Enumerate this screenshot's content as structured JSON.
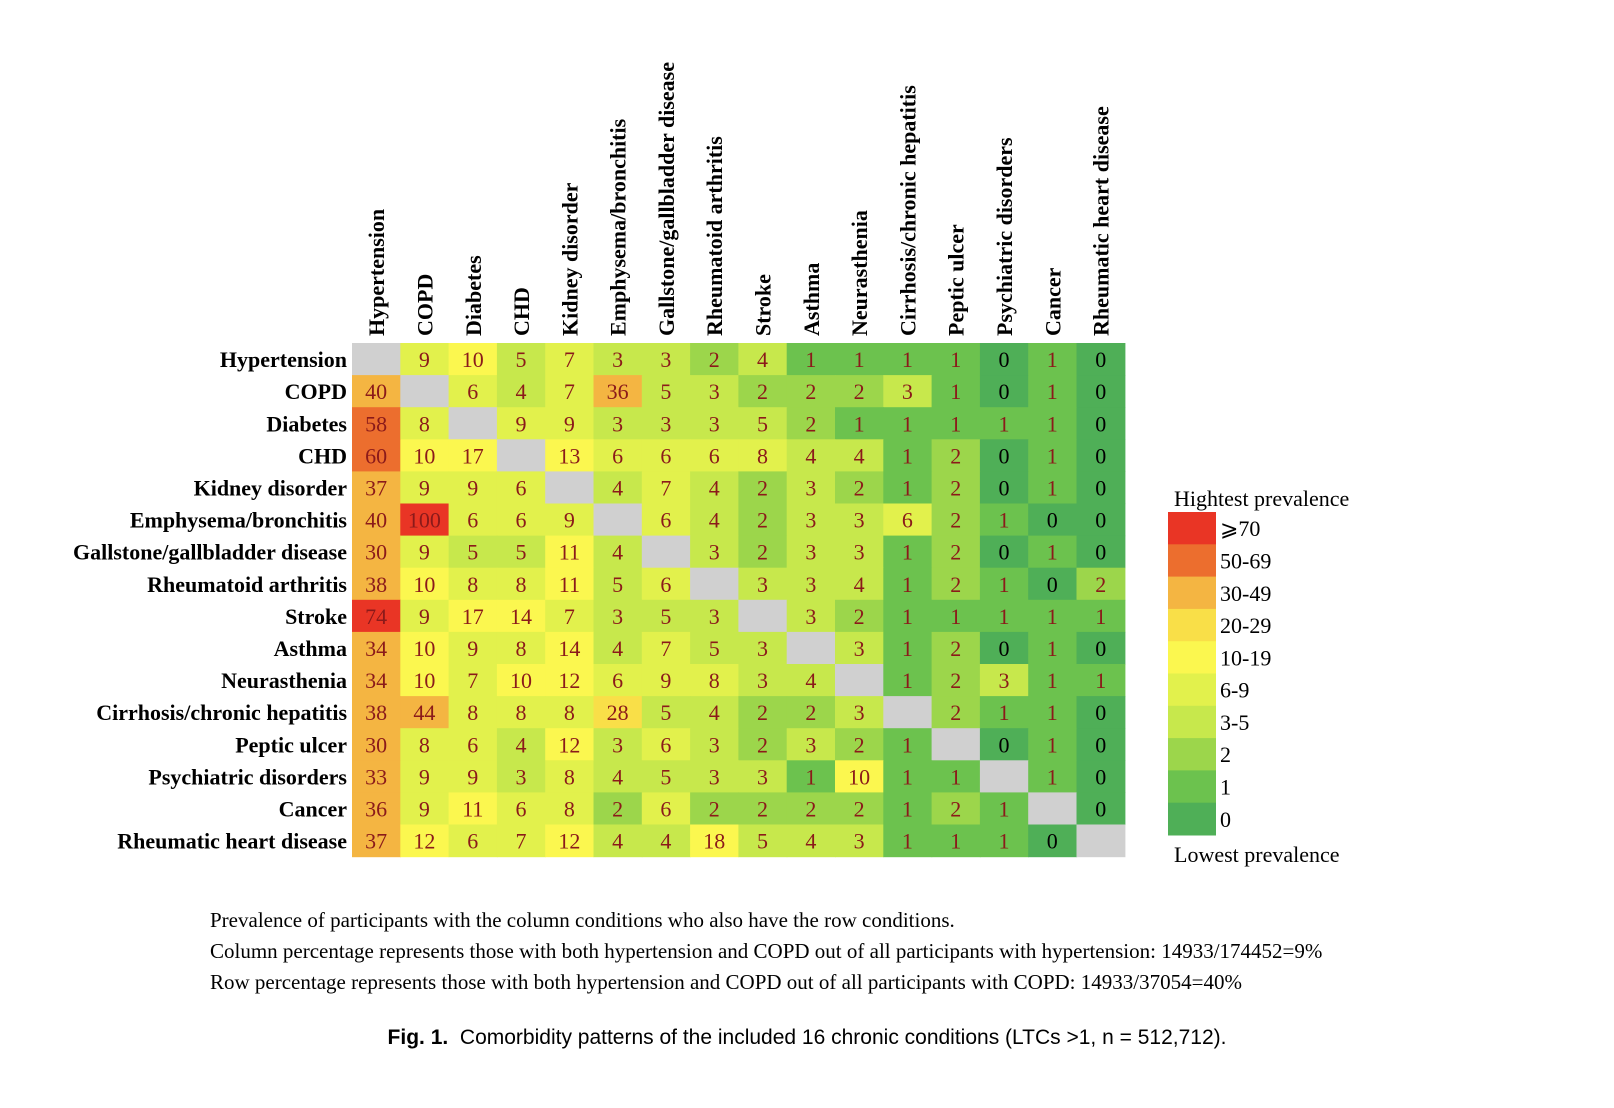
{
  "chart_data": {
    "type": "heatmap",
    "title": "",
    "xlabel": "",
    "ylabel": "",
    "conditions": [
      "Hypertension",
      "COPD",
      "Diabetes",
      "CHD",
      "Kidney disorder",
      "Emphysema/bronchitis",
      "Gallstone/gallbladder disease",
      "Rheumatoid arthritis",
      "Stroke",
      "Asthma",
      "Neurasthenia",
      "Cirrhosis/chronic hepatitis",
      "Peptic ulcer",
      "Psychiatric disorders",
      "Cancer",
      "Rheumatic heart disease"
    ],
    "row_labels": [
      "Hypertension",
      "COPD",
      "Diabetes",
      "CHD",
      "Kidney disorder",
      "Emphysema/bronchitis",
      "Gallstone/gallbladder disease",
      "Rheumatoid arthritis",
      "Stroke",
      "Asthma",
      "Neurasthenia",
      "Cirrhosis/chronic hepatitis",
      "Peptic ulcer",
      "Psychiatric disorders",
      "Cancer",
      "Rheumatic heart disease"
    ],
    "col_labels": [
      "Hypertension",
      "COPD",
      "Diabetes",
      "CHD",
      "Kidney disorder",
      "Emphysema/bronchitis",
      "Gallstone/gallbladder disease",
      "Rheumatoid arthritis",
      "Stroke",
      "Asthma",
      "Neurasthenia",
      "Cirrhosis/chronic hepatitis",
      "Peptic ulcer",
      "Psychiatric disorders",
      "Cancer",
      "Rheumatic heart disease"
    ],
    "values": [
      [
        null,
        9,
        10,
        5,
        7,
        3,
        3,
        2,
        4,
        1,
        1,
        1,
        1,
        0,
        1,
        0
      ],
      [
        40,
        null,
        6,
        4,
        7,
        36,
        5,
        3,
        2,
        2,
        2,
        3,
        1,
        0,
        1,
        0
      ],
      [
        58,
        8,
        null,
        9,
        9,
        3,
        3,
        3,
        5,
        2,
        1,
        1,
        1,
        1,
        1,
        0
      ],
      [
        60,
        10,
        17,
        null,
        13,
        6,
        6,
        6,
        8,
        4,
        4,
        1,
        2,
        0,
        1,
        0
      ],
      [
        37,
        9,
        9,
        6,
        null,
        4,
        7,
        4,
        2,
        3,
        2,
        1,
        2,
        0,
        1,
        0
      ],
      [
        40,
        100,
        6,
        6,
        9,
        null,
        6,
        4,
        2,
        3,
        3,
        6,
        2,
        1,
        0,
        0
      ],
      [
        30,
        9,
        5,
        5,
        11,
        4,
        null,
        3,
        2,
        3,
        3,
        1,
        2,
        0,
        1,
        0
      ],
      [
        38,
        10,
        8,
        8,
        11,
        5,
        6,
        null,
        3,
        3,
        4,
        1,
        2,
        1,
        0,
        2
      ],
      [
        74,
        9,
        17,
        14,
        7,
        3,
        5,
        3,
        null,
        3,
        2,
        1,
        1,
        1,
        1,
        1
      ],
      [
        34,
        10,
        9,
        8,
        14,
        4,
        7,
        5,
        3,
        null,
        3,
        1,
        2,
        0,
        1,
        0
      ],
      [
        34,
        10,
        7,
        10,
        12,
        6,
        9,
        8,
        3,
        4,
        null,
        1,
        2,
        3,
        1,
        1
      ],
      [
        38,
        44,
        8,
        8,
        8,
        28,
        5,
        4,
        2,
        2,
        3,
        null,
        2,
        1,
        1,
        0
      ],
      [
        30,
        8,
        6,
        4,
        12,
        3,
        6,
        3,
        2,
        3,
        2,
        1,
        null,
        0,
        1,
        0
      ],
      [
        33,
        9,
        9,
        3,
        8,
        4,
        5,
        3,
        3,
        1,
        10,
        1,
        1,
        null,
        1,
        0
      ],
      [
        36,
        9,
        11,
        6,
        8,
        2,
        6,
        2,
        2,
        2,
        2,
        1,
        2,
        1,
        null,
        0
      ],
      [
        37,
        12,
        6,
        7,
        12,
        4,
        4,
        18,
        5,
        4,
        3,
        1,
        1,
        1,
        0,
        null
      ]
    ],
    "units": "percent",
    "diagonal_color": "#d0d0d0",
    "text_color_nonzero": "#8b1a1a",
    "text_color_zero": "#000000",
    "legend": {
      "placement": "right",
      "top_label": "Hightest prevalence",
      "bottom_label": "Lowest prevalence",
      "bins": [
        {
          "label": "⩾70",
          "min": 70,
          "max": 1000,
          "color": "#e93525"
        },
        {
          "label": "50-69",
          "min": 50,
          "max": 69,
          "color": "#ec6e2e"
        },
        {
          "label": "30-49",
          "min": 30,
          "max": 49,
          "color": "#f4b542"
        },
        {
          "label": "20-29",
          "min": 20,
          "max": 29,
          "color": "#f9df48"
        },
        {
          "label": "10-19",
          "min": 10,
          "max": 19,
          "color": "#fbf74f"
        },
        {
          "label": "6-9",
          "min": 6,
          "max": 9,
          "color": "#e2f14c"
        },
        {
          "label": "3-5",
          "min": 3,
          "max": 5,
          "color": "#c7e84c"
        },
        {
          "label": "2",
          "min": 2,
          "max": 2,
          "color": "#9cd64b"
        },
        {
          "label": "1",
          "min": 1,
          "max": 1,
          "color": "#6cc24e"
        },
        {
          "label": "0",
          "min": 0,
          "max": 0,
          "color": "#4faf57"
        }
      ]
    }
  },
  "notes": [
    "Prevalence of participants with the column conditions who also have the row conditions.",
    "Column percentage represents those with both hypertension and COPD out of all participants with hypertension: 14933/174452=9%",
    "Row percentage represents those with both hypertension and COPD out of all participants with COPD: 14933/37054=40%"
  ],
  "caption": {
    "label": "Fig. 1.",
    "text": "Comorbidity patterns of the included 16 chronic conditions (LTCs >1, n = 512,712)."
  }
}
